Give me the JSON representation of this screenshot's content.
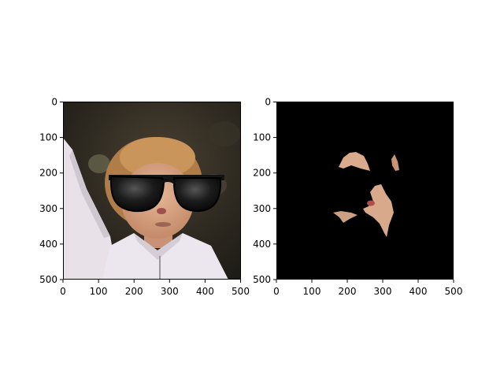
{
  "chart_data": [
    {
      "type": "image",
      "image_description": "Photo of a person with short light-brown hair wearing a white hooded jacket, raising an arm, with large black cartoon sunglasses pasted over the eyes",
      "xlim": [
        0,
        500
      ],
      "ylim": [
        500,
        0
      ],
      "xticks": [
        0,
        100,
        200,
        300,
        400,
        500
      ],
      "yticks": [
        0,
        100,
        200,
        300,
        400,
        500
      ],
      "xtick_labels": [
        "0",
        "100",
        "200",
        "300",
        "400",
        "500"
      ],
      "ytick_labels": [
        "0",
        "100",
        "200",
        "300",
        "400",
        "500"
      ],
      "grid": false
    },
    {
      "type": "image",
      "image_description": "Mostly black masked image showing only small skin-tone fragments of the face (forehead, cheek, nose and mouth regions)",
      "xlim": [
        0,
        500
      ],
      "ylim": [
        500,
        0
      ],
      "xticks": [
        0,
        100,
        200,
        300,
        400,
        500
      ],
      "yticks": [
        0,
        100,
        200,
        300,
        400,
        500
      ],
      "xtick_labels": [
        "0",
        "100",
        "200",
        "300",
        "400",
        "500"
      ],
      "ytick_labels": [
        "0",
        "100",
        "200",
        "300",
        "400",
        "500"
      ],
      "grid": false
    }
  ],
  "colors": {
    "mask_background": "#000000",
    "skin": "#d9a584",
    "jacket": "#e8e2e8",
    "hair": "#b8844c",
    "sunglasses": "#111111"
  }
}
